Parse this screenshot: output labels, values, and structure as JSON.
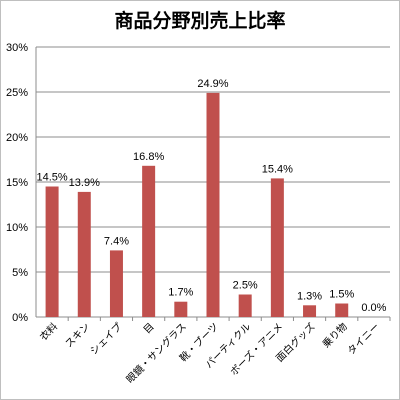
{
  "chart_data": {
    "type": "bar",
    "title": "商品分野別売上比率",
    "categories": [
      "衣料",
      "スキン",
      "シェイプ",
      "目",
      "眼鏡・サングラス",
      "靴・ブーツ",
      "パーティクル",
      "ボーズ・アニメ",
      "面白グッズ",
      "乗り物",
      "タイニー"
    ],
    "values": [
      14.5,
      13.9,
      7.4,
      16.8,
      1.7,
      24.9,
      2.5,
      15.4,
      1.3,
      1.5,
      0.0
    ],
    "data_labels": [
      "14.5%",
      "13.9%",
      "7.4%",
      "16.8%",
      "1.7%",
      "24.9%",
      "2.5%",
      "15.4%",
      "1.3%",
      "1.5%",
      "0.0%"
    ],
    "ylim": [
      0,
      30
    ],
    "yticks": [
      0,
      5,
      10,
      15,
      20,
      25,
      30
    ],
    "ytick_labels": [
      "0%",
      "5%",
      "10%",
      "15%",
      "20%",
      "25%",
      "30%"
    ],
    "xlabel": "",
    "ylabel": "",
    "grid": true,
    "legend": "none",
    "colors": {
      "bar": "#c0504d",
      "grid": "#8c8c8c",
      "axis": "#8c8c8c"
    }
  }
}
